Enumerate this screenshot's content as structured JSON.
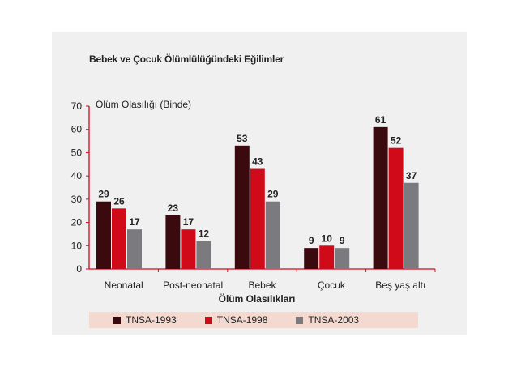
{
  "chart_data": {
    "type": "bar",
    "title": "Bebek ve Çocuk Ölümlülüğündeki Eğilimler",
    "ylabel": "Ölüm Olasılığı (Binde)",
    "xlabel": "Ölüm Olasılıkları",
    "categories": [
      "Neonatal",
      "Post-neonatal",
      "Bebek",
      "Çocuk",
      "Beş yaş altı"
    ],
    "ylim": [
      0,
      70
    ],
    "yticks": [
      0,
      10,
      20,
      30,
      40,
      50,
      60,
      70
    ],
    "grid": false,
    "legend_position": "bottom",
    "series": [
      {
        "name": "TNSA-1993",
        "color": "#3a0a0f",
        "values": [
          29,
          23,
          53,
          9,
          61
        ]
      },
      {
        "name": "TNSA-1998",
        "color": "#d10a1a",
        "values": [
          26,
          17,
          43,
          10,
          52
        ]
      },
      {
        "name": "TNSA-2003",
        "color": "#7b7b7f",
        "values": [
          17,
          12,
          29,
          9,
          37
        ]
      }
    ]
  }
}
